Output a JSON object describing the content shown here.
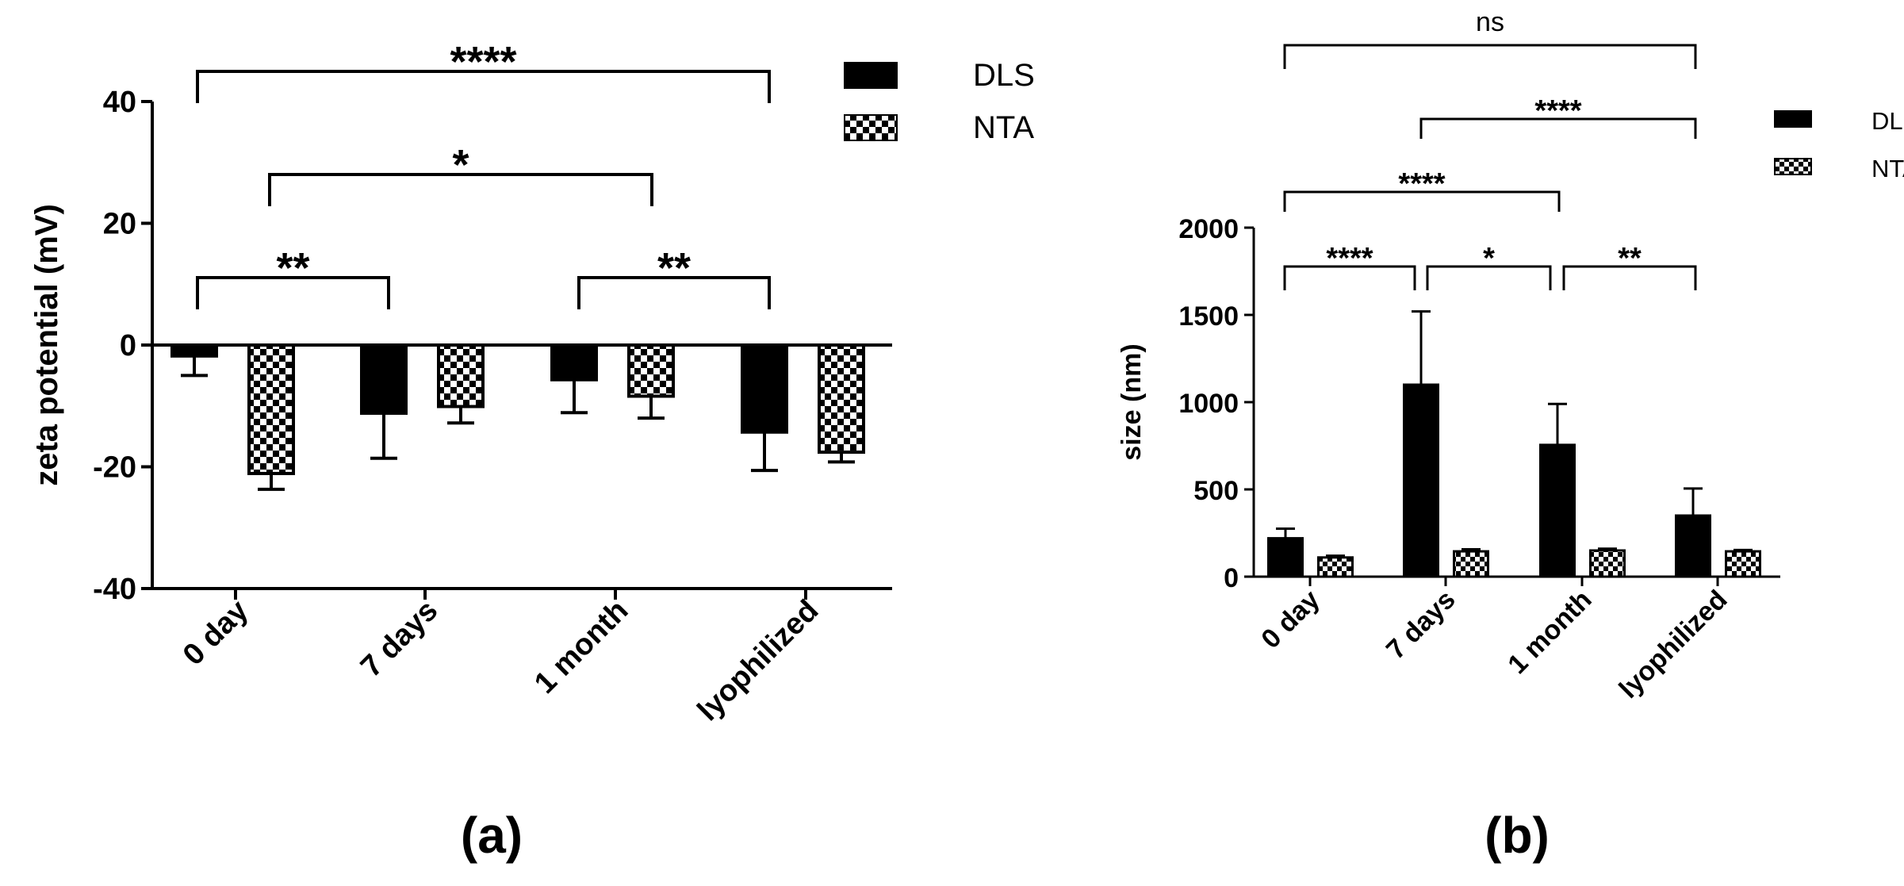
{
  "chart_data": [
    {
      "type": "bar",
      "panel_label": "(a)",
      "categories": [
        "0 day",
        "7 days",
        "1 month",
        "lyophilized"
      ],
      "ylabel": "zeta potential (mV)",
      "xlabel": "",
      "ylim": [
        -40,
        40
      ],
      "yticks": [
        -40,
        -20,
        0,
        20,
        40
      ],
      "legend": {
        "placement": "top-right",
        "entries": [
          "DLS",
          "NTA"
        ]
      },
      "series": [
        {
          "name": "DLS",
          "pattern": "solid",
          "values": [
            -1.8,
            -11.2,
            -5.7,
            -14.3
          ],
          "errors": [
            3.2,
            7.4,
            5.4,
            6.3
          ]
        },
        {
          "name": "NTA",
          "pattern": "checker",
          "values": [
            -21.1,
            -10.1,
            -8.4,
            -17.6
          ],
          "errors": [
            2.6,
            2.7,
            3.6,
            1.6
          ]
        }
      ],
      "significance": [
        {
          "from": "0 day",
          "to": "lyophilized",
          "label": "****"
        },
        {
          "from": "0 day",
          "to": "1 month",
          "label": "*"
        },
        {
          "from": "0 day",
          "to": "7 days",
          "label": "**"
        },
        {
          "from": "1 month",
          "to": "lyophilized",
          "label": "**"
        }
      ],
      "colors": {
        "bar": "#000000",
        "checker_light": "#ffffff"
      }
    },
    {
      "type": "bar",
      "panel_label": "(b)",
      "categories": [
        "0 day",
        "7 days",
        "1 month",
        "lyophilized"
      ],
      "ylabel": "size (nm)",
      "xlabel": "",
      "ylim": [
        0,
        2000
      ],
      "yticks": [
        0,
        500,
        1000,
        1500,
        2000
      ],
      "legend": {
        "placement": "top-right",
        "entries": [
          "DLS",
          "NTA"
        ]
      },
      "series": [
        {
          "name": "DLS",
          "pattern": "solid",
          "values": [
            220,
            1100,
            755,
            350
          ],
          "errors": [
            55,
            420,
            235,
            155
          ]
        },
        {
          "name": "NTA",
          "pattern": "checker",
          "values": [
            110,
            145,
            150,
            145
          ],
          "errors": [
            10,
            12,
            10,
            8
          ]
        }
      ],
      "significance": [
        {
          "from": "0 day",
          "to": "lyophilized",
          "label": "ns"
        },
        {
          "from": "7 days",
          "to": "lyophilized",
          "label": "****"
        },
        {
          "from": "0 day",
          "to": "1 month",
          "label": "****"
        },
        {
          "from": "0 day",
          "to": "7 days",
          "label": "****"
        },
        {
          "from": "7 days",
          "to": "1 month",
          "label": "*"
        },
        {
          "from": "1 month",
          "to": "lyophilized",
          "label": "**"
        }
      ],
      "colors": {
        "bar": "#000000",
        "checker_light": "#ffffff"
      }
    }
  ]
}
